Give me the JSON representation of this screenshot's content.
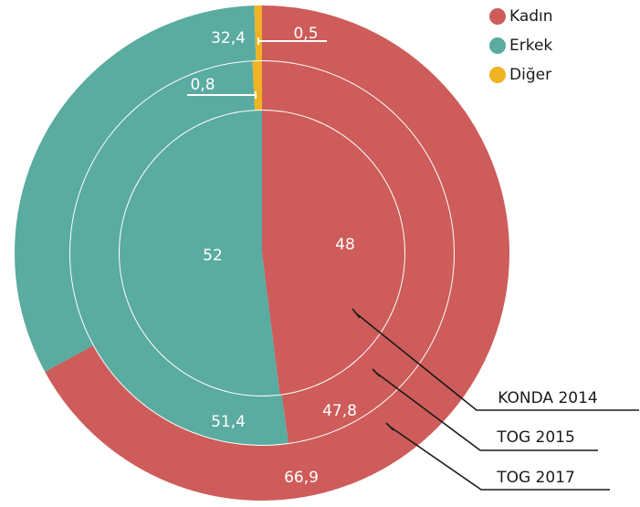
{
  "chart_data": {
    "type": "donut",
    "categories": [
      "Kadın",
      "Erkek",
      "Diğer"
    ],
    "colors": [
      "#cd5c5a",
      "#5aaba0",
      "#f0b323"
    ],
    "series": [
      {
        "name": "KONDA 2014",
        "values": [
          48,
          52,
          null
        ]
      },
      {
        "name": "TOG 2015",
        "values": [
          47.8,
          51.4,
          0.8
        ],
        "value_labels": [
          "47,8",
          "51,4",
          "0,8"
        ]
      },
      {
        "name": "TOG 2017",
        "values": [
          66.9,
          32.4,
          0.5
        ],
        "value_labels": [
          "66,9",
          "32,4",
          "0,5"
        ]
      }
    ]
  }
}
